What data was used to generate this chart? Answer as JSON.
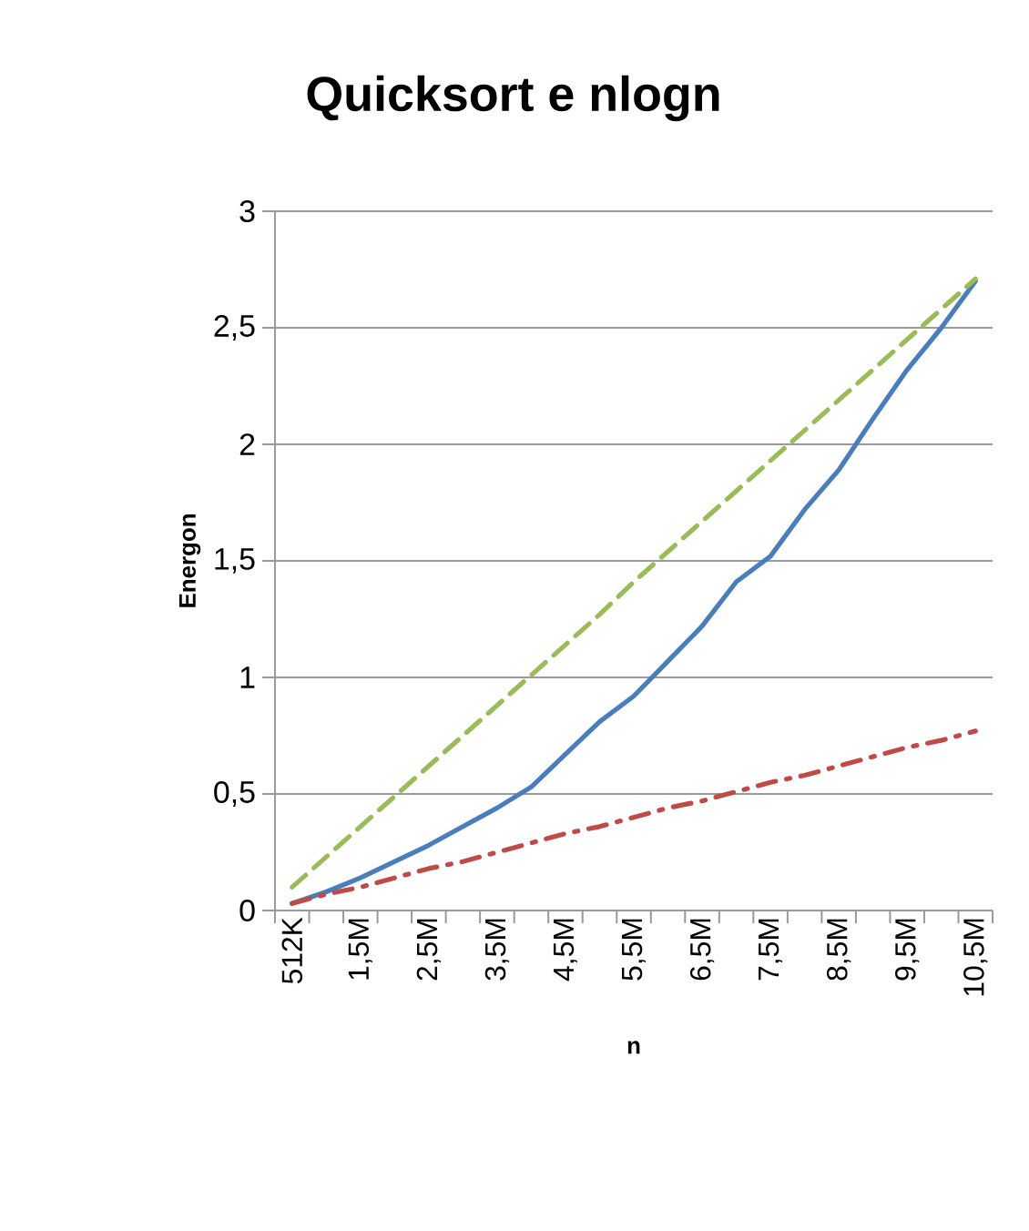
{
  "chart_data": {
    "type": "line",
    "title": "Quicksort e nlogn",
    "xlabel": "n",
    "ylabel": "Energon",
    "categories": [
      "512K",
      null,
      "1,5M",
      null,
      "2,5M",
      null,
      "3,5M",
      null,
      "4,5M",
      null,
      "5,5M",
      null,
      "6,5M",
      null,
      "7,5M",
      null,
      "8,5M",
      null,
      "9,5M",
      null,
      "10,5M"
    ],
    "series": [
      {
        "color": "#4a7ebb",
        "line_style": "solid",
        "values": [
          0.03,
          0.08,
          0.14,
          0.21,
          0.28,
          0.36,
          0.44,
          0.53,
          0.67,
          0.81,
          0.92,
          1.07,
          1.22,
          1.41,
          1.52,
          1.72,
          1.89,
          2.11,
          2.32,
          2.5,
          2.7
        ]
      },
      {
        "color": "#9bbb59",
        "line_style": "dashed",
        "values": [
          0.1,
          0.23,
          0.36,
          0.49,
          0.62,
          0.75,
          0.88,
          1.01,
          1.14,
          1.27,
          1.41,
          1.54,
          1.67,
          1.8,
          1.93,
          2.06,
          2.19,
          2.32,
          2.45,
          2.58,
          2.71
        ]
      },
      {
        "color": "#be4b48",
        "line_style": "dashdot",
        "values": [
          0.03,
          0.07,
          0.1,
          0.14,
          0.18,
          0.21,
          0.25,
          0.29,
          0.33,
          0.36,
          0.4,
          0.44,
          0.47,
          0.51,
          0.55,
          0.58,
          0.62,
          0.66,
          0.7,
          0.73,
          0.77
        ]
      }
    ],
    "ylim": [
      0,
      3
    ],
    "yticks": [
      0,
      {
        "value": 0.5,
        "label": "0,5"
      },
      1,
      {
        "value": 1.5,
        "label": "1,5"
      },
      2,
      {
        "value": 2.5,
        "label": "2,5"
      },
      3
    ],
    "grid": "y",
    "marker": "none"
  }
}
